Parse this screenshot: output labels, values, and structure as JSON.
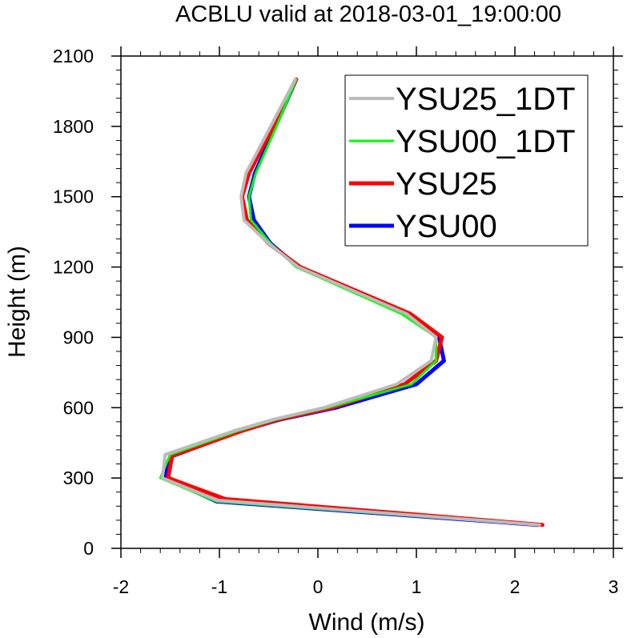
{
  "chart_data": {
    "type": "line",
    "title": "ACBLU valid at 2018-03-01_19:00:00",
    "xlabel": "Wind (m/s)",
    "ylabel": "Height (m)",
    "xlim": [
      -2,
      3
    ],
    "ylim": [
      0,
      2100
    ],
    "xticks": [
      "-2",
      "-1",
      "0",
      "1",
      "2",
      "3"
    ],
    "yticks": [
      "0",
      "300",
      "600",
      "900",
      "1200",
      "1500",
      "1800",
      "2100"
    ],
    "legend_position": "top-right",
    "series": [
      {
        "name": "YSU00",
        "color": "#0000ff",
        "width": 5,
        "points": [
          [
            2.24,
            100
          ],
          [
            -1.03,
            200
          ],
          [
            -1.55,
            300
          ],
          [
            -1.5,
            390
          ],
          [
            -0.79,
            500
          ],
          [
            -0.38,
            550
          ],
          [
            0.18,
            600
          ],
          [
            1.0,
            700
          ],
          [
            1.28,
            800
          ],
          [
            1.23,
            900
          ],
          [
            0.92,
            1000
          ],
          [
            -0.2,
            1200
          ],
          [
            -0.48,
            1300
          ],
          [
            -0.65,
            1400
          ],
          [
            -0.7,
            1500
          ],
          [
            -0.64,
            1600
          ],
          [
            -0.43,
            1800
          ],
          [
            -0.22,
            2000
          ]
        ]
      },
      {
        "name": "YSU25",
        "color": "#ff0000",
        "width": 5,
        "points": [
          [
            2.28,
            100
          ],
          [
            -0.94,
            210
          ],
          [
            -1.52,
            300
          ],
          [
            -1.48,
            395
          ],
          [
            -0.78,
            500
          ],
          [
            -0.4,
            550
          ],
          [
            0.14,
            600
          ],
          [
            0.88,
            700
          ],
          [
            1.2,
            800
          ],
          [
            1.26,
            900
          ],
          [
            0.94,
            1000
          ],
          [
            -0.18,
            1200
          ],
          [
            -0.5,
            1300
          ],
          [
            -0.72,
            1400
          ],
          [
            -0.77,
            1500
          ],
          [
            -0.7,
            1600
          ],
          [
            -0.45,
            1800
          ],
          [
            -0.22,
            2000
          ]
        ]
      },
      {
        "name": "YSU00_1DT",
        "color": "#00ff00",
        "width": 3,
        "points": [
          [
            2.22,
            100
          ],
          [
            -1.03,
            200
          ],
          [
            -1.6,
            300
          ],
          [
            -1.5,
            400
          ],
          [
            -0.82,
            500
          ],
          [
            -0.42,
            550
          ],
          [
            0.1,
            600
          ],
          [
            0.95,
            700
          ],
          [
            1.2,
            800
          ],
          [
            1.2,
            900
          ],
          [
            0.85,
            1000
          ],
          [
            -0.22,
            1200
          ],
          [
            -0.48,
            1300
          ],
          [
            -0.68,
            1400
          ],
          [
            -0.7,
            1500
          ],
          [
            -0.63,
            1600
          ],
          [
            -0.42,
            1800
          ],
          [
            -0.22,
            2000
          ]
        ]
      },
      {
        "name": "YSU25_1DT",
        "color": "#bbbbbb",
        "width": 4,
        "points": [
          [
            2.25,
            100
          ],
          [
            -1.02,
            205
          ],
          [
            -1.58,
            300
          ],
          [
            -1.55,
            400
          ],
          [
            -0.86,
            500
          ],
          [
            -0.45,
            550
          ],
          [
            0.06,
            600
          ],
          [
            0.8,
            700
          ],
          [
            1.15,
            800
          ],
          [
            1.2,
            900
          ],
          [
            0.9,
            1000
          ],
          [
            -0.2,
            1200
          ],
          [
            -0.5,
            1300
          ],
          [
            -0.75,
            1400
          ],
          [
            -0.78,
            1500
          ],
          [
            -0.73,
            1600
          ],
          [
            -0.48,
            1800
          ],
          [
            -0.23,
            2000
          ]
        ]
      }
    ],
    "legend_order": [
      "YSU25_1DT",
      "YSU00_1DT",
      "YSU25",
      "YSU00"
    ]
  }
}
